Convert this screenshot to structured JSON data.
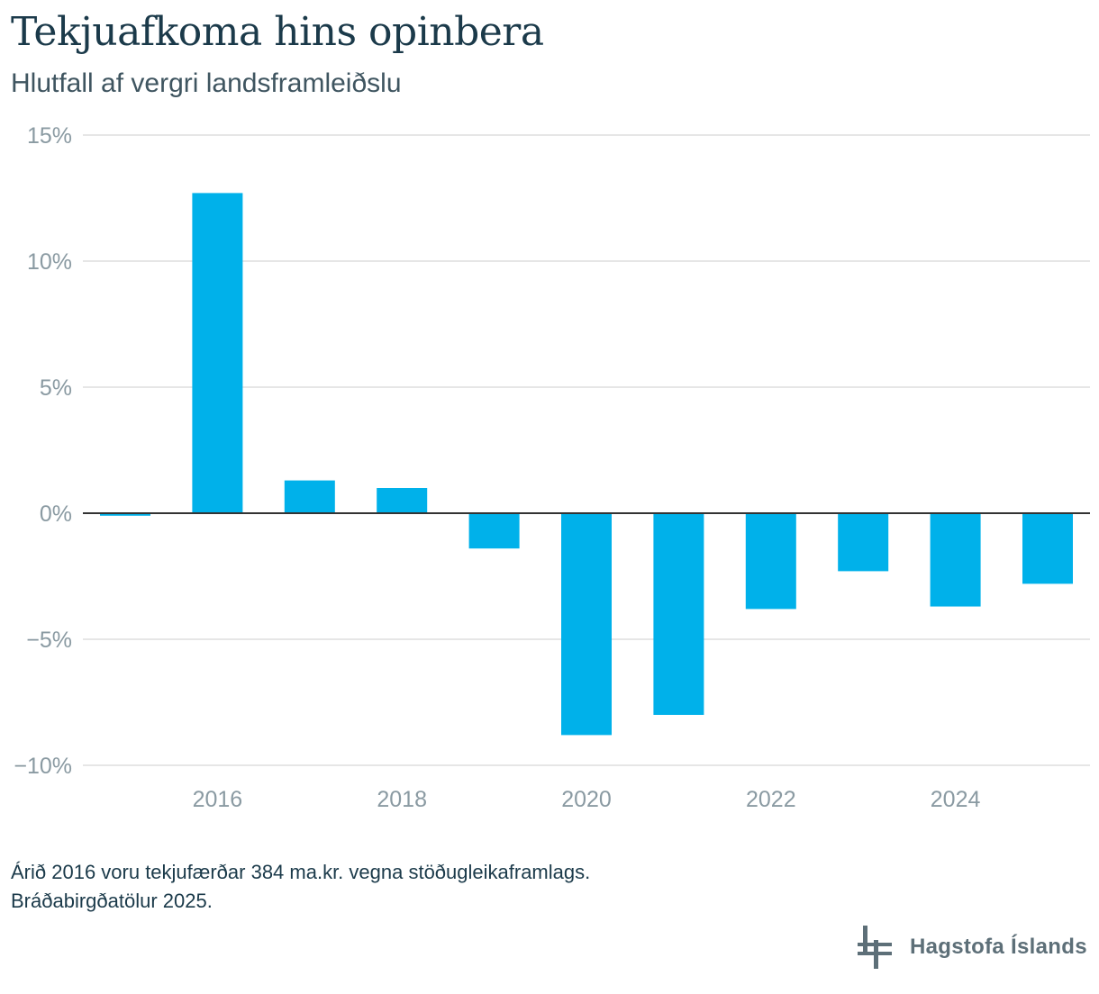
{
  "header": {
    "title": "Tekjuafkoma hins opinbera",
    "subtitle": "Hlutfall af vergri landsframleiðslu"
  },
  "notes": {
    "line1": "Árið 2016 voru tekjufærðar 384 ma.kr. vegna stöðugleikaframlags.",
    "line2": "Bráðabirgðatölur 2025."
  },
  "logo": {
    "text": "Hagstofa Íslands",
    "icon": "hagstofa-logo-icon"
  },
  "colors": {
    "bar": "#00b1ea",
    "grid": "#dddddd",
    "zero_line": "#333333",
    "tick_text": "#8a9aa2"
  },
  "chart_data": {
    "type": "bar",
    "title": "Tekjuafkoma hins opinbera",
    "subtitle": "Hlutfall af vergri landsframleiðslu",
    "xlabel": "",
    "ylabel": "",
    "x": [
      2015,
      2016,
      2017,
      2018,
      2019,
      2020,
      2021,
      2022,
      2023,
      2024,
      2025
    ],
    "values": [
      -0.1,
      12.7,
      1.3,
      1.0,
      -1.4,
      -8.8,
      -8.0,
      -3.8,
      -2.3,
      -3.7,
      -2.8
    ],
    "ylim": [
      -10,
      15
    ],
    "yticks": [
      15,
      10,
      5,
      0,
      -5,
      -10
    ],
    "ytick_labels": [
      "15%",
      "10%",
      "5%",
      "0%",
      "−5%",
      "−10%"
    ],
    "xtick_labels": [
      "2016",
      "2018",
      "2020",
      "2022",
      "2024"
    ],
    "xtick_values": [
      2016,
      2018,
      2020,
      2022,
      2024
    ],
    "grid": true,
    "legend": "none"
  }
}
